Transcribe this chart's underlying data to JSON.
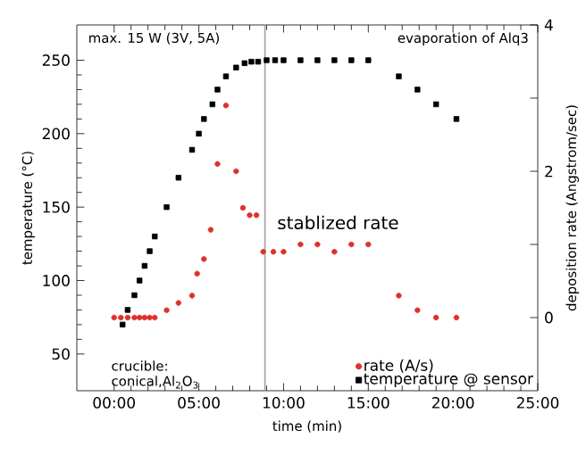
{
  "chart_data": {
    "type": "scatter",
    "xlabel": "time (min)",
    "ylabel": "temperature (°C)",
    "y2label": "deposition rate (Angstrom/sec)",
    "xlim": [
      -2.2,
      25
    ],
    "ylim": [
      25,
      274
    ],
    "y2lim": [
      -1,
      4
    ],
    "xticks": [
      {
        "value": 0,
        "label": "00:00"
      },
      {
        "value": 5,
        "label": "05:00"
      },
      {
        "value": 10,
        "label": "10:00"
      },
      {
        "value": 15,
        "label": "15:00"
      },
      {
        "value": 20,
        "label": "20:00"
      },
      {
        "value": 25,
        "label": "25:00"
      }
    ],
    "yticks": [
      50,
      100,
      150,
      200,
      250
    ],
    "y2ticks": [
      0,
      {
        "value": 1,
        "label": null
      },
      2,
      {
        "value": 3,
        "label": null
      },
      4
    ],
    "series": [
      {
        "name": "rate (A/s)",
        "color": "#e0302a",
        "axis": "y2",
        "marker": "circle",
        "x": [
          0,
          0.4,
          0.8,
          1.2,
          1.5,
          1.8,
          2.1,
          2.4,
          3.1,
          3.8,
          4.6,
          4.9,
          5.3,
          5.7,
          6.1,
          6.6,
          7.2,
          7.6,
          8.0,
          8.4,
          8.8,
          9.4,
          10.0,
          11.0,
          12.0,
          13.0,
          14.0,
          15.0,
          16.8,
          17.9,
          19.0,
          20.2
        ],
        "values": [
          0,
          0,
          0,
          0,
          0,
          0,
          0,
          0,
          0.1,
          0.2,
          0.3,
          0.6,
          0.8,
          1.2,
          2.1,
          2.9,
          2.0,
          1.5,
          1.4,
          1.4,
          0.9,
          0.9,
          0.9,
          1.0,
          1.0,
          0.9,
          1.0,
          1.0,
          0.3,
          0.1,
          0,
          0
        ]
      },
      {
        "name": "temperature @ sensor",
        "color": "#000000",
        "axis": "y",
        "marker": "square",
        "x": [
          0.5,
          0.8,
          1.2,
          1.5,
          1.8,
          2.1,
          2.4,
          3.1,
          3.8,
          4.6,
          5.0,
          5.3,
          5.8,
          6.1,
          6.6,
          7.2,
          7.7,
          8.1,
          8.5,
          9.0,
          9.5,
          10.0,
          11.0,
          12.0,
          13.0,
          14.0,
          15.0,
          16.8,
          17.9,
          19.0,
          20.2
        ],
        "values": [
          70,
          80,
          90,
          100,
          110,
          120,
          130,
          150,
          170,
          189,
          200,
          210,
          220,
          230,
          239,
          245,
          248,
          249,
          249,
          250,
          250,
          250,
          250,
          250,
          250,
          250,
          250,
          239,
          230,
          220,
          210
        ]
      }
    ],
    "ref_lines": [
      {
        "axis": "x",
        "value": 8.9,
        "color": "#a0a0a0"
      }
    ],
    "annotations": [
      "max. 15 W (3V, 5A)",
      "evaporation of Alq3",
      "stablized rate",
      "crucible: conical,Al$_{2}$O$_{3}$"
    ],
    "legend": "bottom right"
  }
}
